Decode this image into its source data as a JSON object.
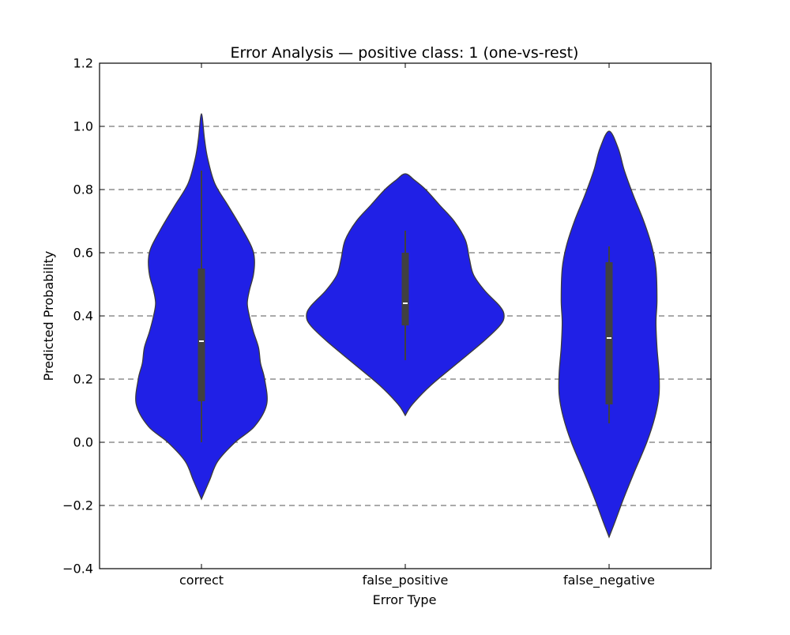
{
  "chart_data": {
    "type": "violin",
    "title": "Error Analysis — positive class: 1 (one-vs-rest)",
    "xlabel": "Error Type",
    "ylabel": "Predicted Probability",
    "ylim": [
      -0.4,
      1.2
    ],
    "yticks": [
      -0.4,
      -0.2,
      0.0,
      0.2,
      0.4,
      0.6,
      0.8,
      1.0,
      1.2
    ],
    "ytick_labels": [
      "−0.4",
      "−0.2",
      "0.0",
      "0.2",
      "0.4",
      "0.6",
      "0.8",
      "1.0",
      "1.2"
    ],
    "grid": "horizontal dashed",
    "categories": [
      "correct",
      "false_positive",
      "false_negative"
    ],
    "colors": {
      "violin_fill": "#2020e6",
      "violin_edge": "#3a3a3a",
      "box": "#404040",
      "median": "#ffffff",
      "grid": "#555555"
    },
    "violins": [
      {
        "category": "correct",
        "density": [
          [
            -0.18,
            0.0
          ],
          [
            -0.12,
            0.08
          ],
          [
            -0.06,
            0.16
          ],
          [
            0.0,
            0.33
          ],
          [
            0.05,
            0.52
          ],
          [
            0.12,
            0.64
          ],
          [
            0.2,
            0.62
          ],
          [
            0.25,
            0.58
          ],
          [
            0.3,
            0.56
          ],
          [
            0.35,
            0.51
          ],
          [
            0.4,
            0.47
          ],
          [
            0.44,
            0.45
          ],
          [
            0.48,
            0.47
          ],
          [
            0.53,
            0.51
          ],
          [
            0.58,
            0.52
          ],
          [
            0.62,
            0.49
          ],
          [
            0.68,
            0.39
          ],
          [
            0.75,
            0.26
          ],
          [
            0.82,
            0.13
          ],
          [
            0.9,
            0.06
          ],
          [
            0.96,
            0.03
          ],
          [
            1.04,
            0.0
          ]
        ],
        "whisker": [
          0.0,
          0.86
        ],
        "q1": 0.13,
        "median": 0.32,
        "q3": 0.55
      },
      {
        "category": "false_positive",
        "density": [
          [
            0.085,
            0.0
          ],
          [
            0.12,
            0.07
          ],
          [
            0.18,
            0.25
          ],
          [
            0.25,
            0.51
          ],
          [
            0.32,
            0.77
          ],
          [
            0.37,
            0.93
          ],
          [
            0.4,
            0.97
          ],
          [
            0.43,
            0.93
          ],
          [
            0.48,
            0.78
          ],
          [
            0.53,
            0.67
          ],
          [
            0.58,
            0.63
          ],
          [
            0.64,
            0.59
          ],
          [
            0.7,
            0.48
          ],
          [
            0.75,
            0.34
          ],
          [
            0.8,
            0.2
          ],
          [
            0.83,
            0.09
          ],
          [
            0.85,
            0.0
          ]
        ],
        "whisker": [
          0.26,
          0.67
        ],
        "q1": 0.37,
        "median": 0.44,
        "q3": 0.6
      },
      {
        "category": "false_negative",
        "density": [
          [
            -0.3,
            0.0
          ],
          [
            -0.25,
            0.06
          ],
          [
            -0.18,
            0.14
          ],
          [
            -0.1,
            0.24
          ],
          [
            0.0,
            0.37
          ],
          [
            0.08,
            0.45
          ],
          [
            0.15,
            0.49
          ],
          [
            0.22,
            0.49
          ],
          [
            0.3,
            0.47
          ],
          [
            0.38,
            0.46
          ],
          [
            0.45,
            0.47
          ],
          [
            0.55,
            0.46
          ],
          [
            0.62,
            0.42
          ],
          [
            0.7,
            0.34
          ],
          [
            0.78,
            0.24
          ],
          [
            0.86,
            0.15
          ],
          [
            0.93,
            0.09
          ],
          [
            0.985,
            0.0
          ]
        ],
        "whisker": [
          0.06,
          0.62
        ],
        "q1": 0.12,
        "median": 0.33,
        "q3": 0.57
      }
    ]
  }
}
